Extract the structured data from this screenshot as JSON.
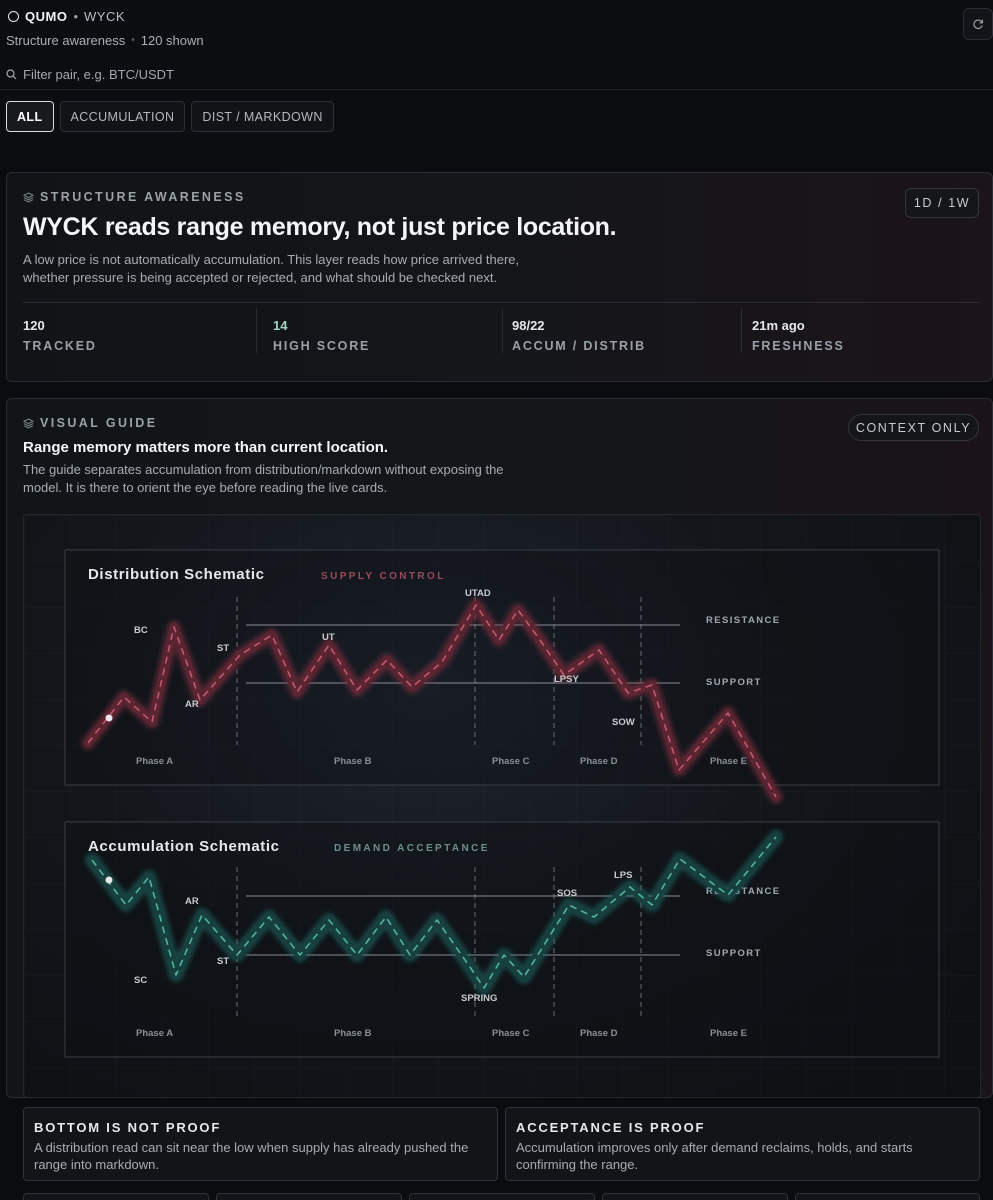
{
  "header": {
    "brand": "QUMO",
    "separator": "•",
    "section": "WYCK",
    "subtitle": "Structure awareness",
    "subtitle_dot": "•",
    "shown_count": "120 shown"
  },
  "filter": {
    "placeholder": "Filter pair, e.g. BTC/USDT",
    "value": ""
  },
  "tabs": [
    {
      "label": "ALL",
      "active": true
    },
    {
      "label": "ACCUMULATION",
      "active": false
    },
    {
      "label": "DIST / MARKDOWN",
      "active": false
    }
  ],
  "structure": {
    "eyebrow": "STRUCTURE AWARENESS",
    "timeframe": "1D / 1W",
    "title": "WYCK reads range memory, not just price location.",
    "body": "A low price is not automatically accumulation. This layer reads how price arrived there, whether pressure is being accepted or rejected, and what should be checked next.",
    "stats": [
      {
        "value": "120",
        "label": "TRACKED"
      },
      {
        "value": "14",
        "label": "HIGH SCORE"
      },
      {
        "value": "98/22",
        "label": "ACCUM / DISTRIB"
      },
      {
        "value": "21m ago",
        "label": "FRESHNESS"
      }
    ]
  },
  "guide": {
    "eyebrow": "VISUAL GUIDE",
    "badge": "CONTEXT ONLY",
    "title": "Range memory matters more than current location.",
    "body": "The guide separates accumulation from distribution/markdown without exposing the model. It is there to orient the eye before reading the live cards."
  },
  "colors": {
    "distribution": "#b04a60",
    "accumulation": "#2e8f86",
    "accent_green": "#9fd8c0"
  },
  "schematics": {
    "distribution": {
      "title": "Distribution Schematic",
      "tag": "SUPPLY CONTROL",
      "levels": [
        "RESISTANCE",
        "SUPPORT"
      ],
      "events": [
        "BC",
        "AR",
        "ST",
        "UT",
        "UTAD",
        "LPSY",
        "SOW"
      ],
      "phases": [
        "Phase A",
        "Phase B",
        "Phase C",
        "Phase D",
        "Phase E"
      ]
    },
    "accumulation": {
      "title": "Accumulation Schematic",
      "tag": "DEMAND ACCEPTANCE",
      "levels": [
        "RESISTANCE",
        "SUPPORT"
      ],
      "events": [
        "SC",
        "AR",
        "ST",
        "SPRING",
        "SOS",
        "LPS"
      ],
      "phases": [
        "Phase A",
        "Phase B",
        "Phase C",
        "Phase D",
        "Phase E"
      ]
    }
  },
  "notes": [
    {
      "title": "BOTTOM IS NOT PROOF",
      "text": "A distribution read can sit near the low when supply has already pushed the range into markdown."
    },
    {
      "title": "ACCEPTANCE IS PROOF",
      "text": "Accumulation improves only after demand reclaims, holds, and starts confirming the range."
    }
  ]
}
